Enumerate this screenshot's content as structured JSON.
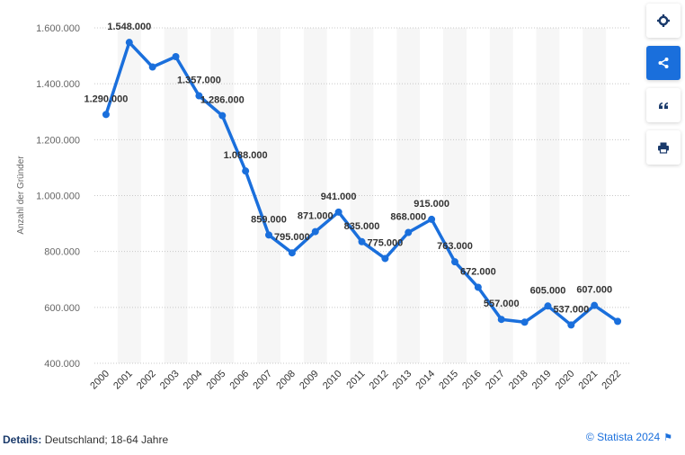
{
  "toolbar": {
    "icons": [
      "gear-icon",
      "share-icon",
      "quote-icon",
      "print-icon"
    ],
    "accent": "#1a6fdc"
  },
  "footer": {
    "details_label": "Details:",
    "details_text": "Deutschland; 18-64 Jahre",
    "copyright": "© Statista 2024",
    "flag_icon": "flag-icon"
  },
  "chart_data": {
    "type": "line",
    "title": "",
    "xlabel": "",
    "ylabel": "Anzahl der Gründer",
    "ylim": [
      400000,
      1600000
    ],
    "yticks": [
      400000,
      600000,
      800000,
      1000000,
      1200000,
      1400000,
      1600000
    ],
    "ytick_labels": [
      "400.000",
      "600.000",
      "800.000",
      "1.000.000",
      "1.200.000",
      "1.400.000",
      "1.600.000"
    ],
    "grid": true,
    "line_color": "#1a6fdc",
    "x": [
      "2000",
      "2001",
      "2002",
      "2003",
      "2004",
      "2005",
      "2006",
      "2007",
      "2008",
      "2009",
      "2010",
      "2011",
      "2012",
      "2013",
      "2014",
      "2015",
      "2016",
      "2017",
      "2018",
      "2019",
      "2020",
      "2021",
      "2022"
    ],
    "values": [
      1290000,
      1548000,
      1460000,
      1497000,
      1357000,
      1286000,
      1088000,
      859000,
      795000,
      871000,
      941000,
      835000,
      775000,
      868000,
      915000,
      763000,
      672000,
      557000,
      547000,
      605000,
      537000,
      607000,
      550000
    ],
    "data_labels": [
      "1.290.000",
      "1.548.000",
      "",
      "",
      "1.357.000",
      "1.286.000",
      "1.088.000",
      "859.000",
      "795.000",
      "871.000",
      "941.000",
      "835.000",
      "775.000",
      "868.000",
      "915.000",
      "763.000",
      "672.000",
      "557.000",
      "",
      "605.000",
      "537.000",
      "607.000",
      ""
    ]
  }
}
